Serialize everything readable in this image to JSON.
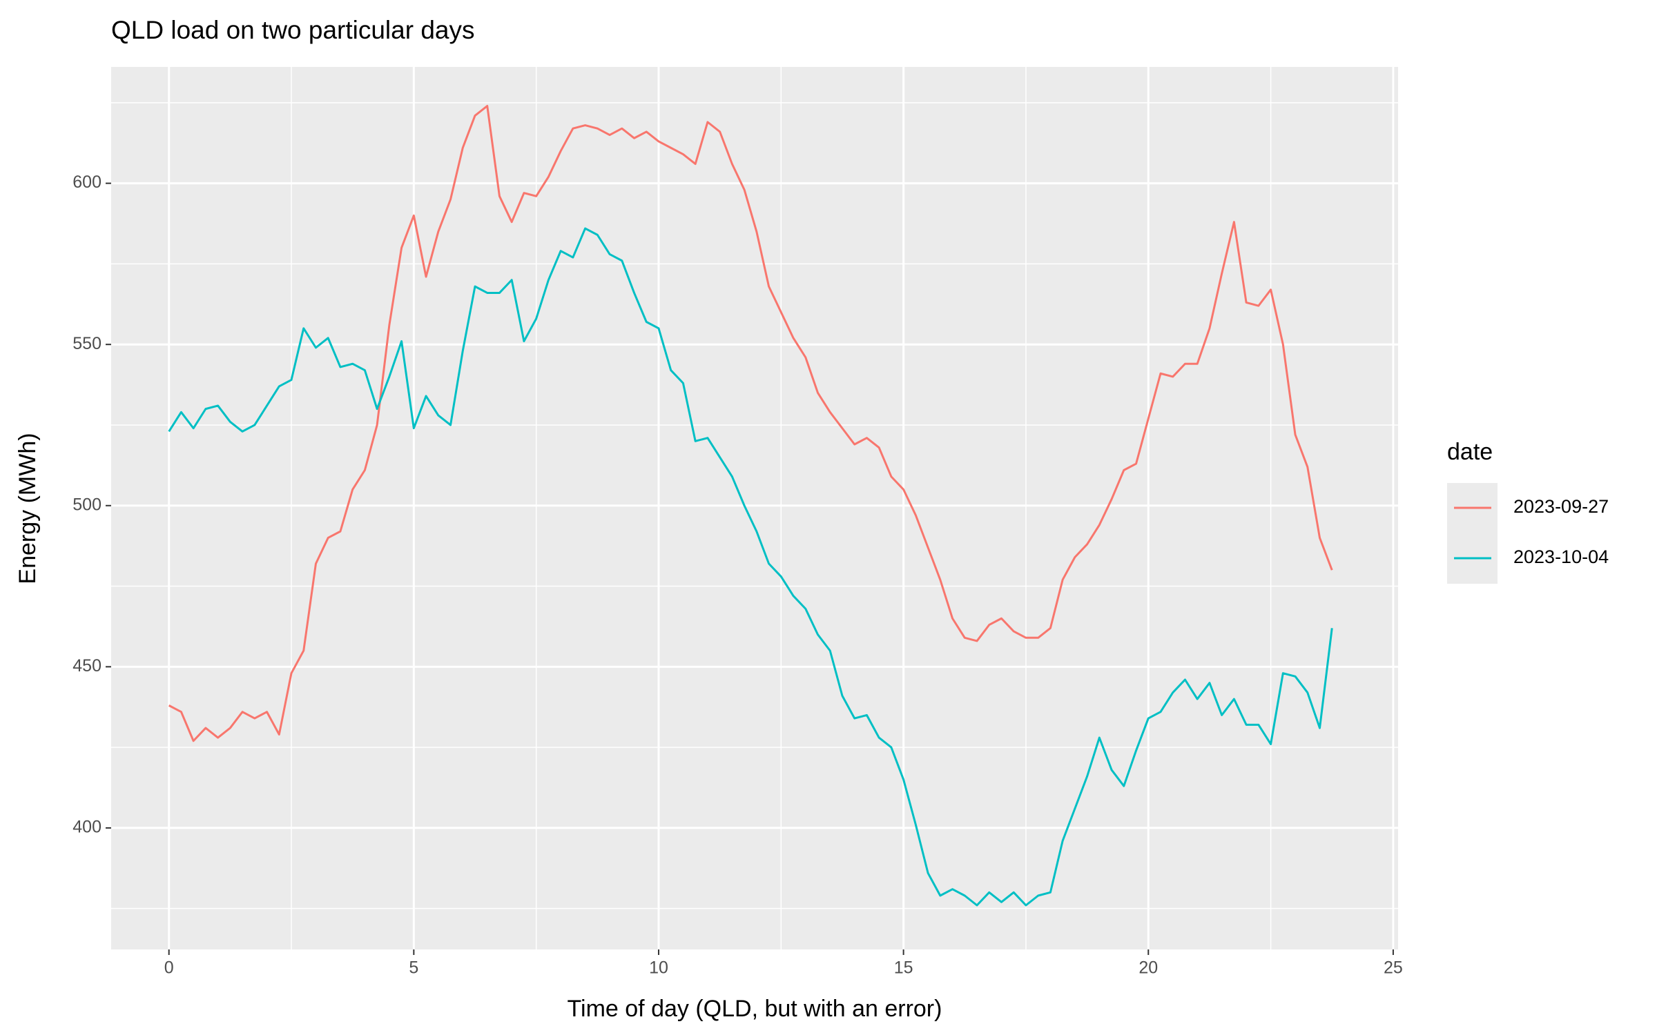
{
  "chart_data": {
    "type": "line",
    "title": "QLD load on two particular days",
    "x_label": "Time of day (QLD, but with an error)",
    "y_label": "Energy (MWh)",
    "legend_title": "date",
    "legend": "right",
    "grid": true,
    "xlim": [
      -1.18,
      25.1
    ],
    "ylim": [
      362.3,
      636.1
    ],
    "xticks": [
      0,
      5,
      10,
      15,
      20,
      25
    ],
    "yticks": [
      400,
      450,
      500,
      550,
      600
    ],
    "x": [
      0,
      0.25,
      0.5,
      0.75,
      1,
      1.25,
      1.5,
      1.75,
      2,
      2.25,
      2.5,
      2.75,
      3,
      3.25,
      3.5,
      3.75,
      4,
      4.25,
      4.5,
      4.75,
      5,
      5.25,
      5.5,
      5.75,
      6,
      6.25,
      6.5,
      6.75,
      7,
      7.25,
      7.5,
      7.75,
      8,
      8.25,
      8.5,
      8.75,
      9,
      9.25,
      9.5,
      9.75,
      10,
      10.25,
      10.5,
      10.75,
      11,
      11.25,
      11.5,
      11.75,
      12,
      12.25,
      12.5,
      12.75,
      13,
      13.25,
      13.5,
      13.75,
      14,
      14.25,
      14.5,
      14.75,
      15,
      15.25,
      15.5,
      15.75,
      16,
      16.25,
      16.5,
      16.75,
      17,
      17.25,
      17.5,
      17.75,
      18,
      18.25,
      18.5,
      18.75,
      19,
      19.25,
      19.5,
      19.75,
      20,
      20.25,
      20.5,
      20.75,
      21,
      21.25,
      21.5,
      21.75,
      22,
      22.25,
      22.5,
      22.75,
      23,
      23.25,
      23.5,
      23.75
    ],
    "series": [
      {
        "name": "2023-09-27",
        "color": "#F8766D",
        "values": [
          438,
          436,
          427,
          431,
          428,
          431,
          436,
          434,
          436,
          429,
          448,
          455,
          482,
          490,
          492,
          505,
          511,
          525,
          556,
          580,
          590,
          571,
          585,
          595,
          611,
          621,
          624,
          596,
          588,
          597,
          596,
          602,
          610,
          617,
          618,
          617,
          615,
          617,
          614,
          616,
          613,
          611,
          609,
          606,
          619,
          616,
          606,
          598,
          585,
          568,
          560,
          552,
          546,
          535,
          529,
          524,
          519,
          521,
          518,
          509,
          505,
          497,
          487,
          477,
          465,
          459,
          458,
          463,
          465,
          461,
          459,
          459,
          462,
          477,
          484,
          488,
          494,
          502,
          511,
          513,
          527,
          541,
          540,
          544,
          544,
          555,
          572,
          588,
          563,
          562,
          567,
          550,
          522,
          512,
          490,
          480
        ]
      },
      {
        "name": "2023-10-04",
        "color": "#00BFC4",
        "values": [
          523,
          529,
          524,
          530,
          531,
          526,
          523,
          525,
          531,
          537,
          539,
          555,
          549,
          552,
          543,
          544,
          542,
          530,
          540,
          551,
          524,
          534,
          528,
          525,
          548,
          568,
          566,
          566,
          570,
          551,
          558,
          570,
          579,
          577,
          586,
          584,
          578,
          576,
          566,
          557,
          555,
          542,
          538,
          520,
          521,
          515,
          509,
          500,
          492,
          482,
          478,
          472,
          468,
          460,
          455,
          441,
          434,
          435,
          428,
          425,
          415,
          401,
          386,
          379,
          381,
          379,
          376,
          380,
          377,
          380,
          376,
          379,
          380,
          396,
          406,
          416,
          428,
          418,
          413,
          424,
          434,
          436,
          442,
          446,
          440,
          445,
          435,
          440,
          432,
          432,
          426,
          448,
          447,
          442,
          431,
          462
        ]
      }
    ]
  }
}
